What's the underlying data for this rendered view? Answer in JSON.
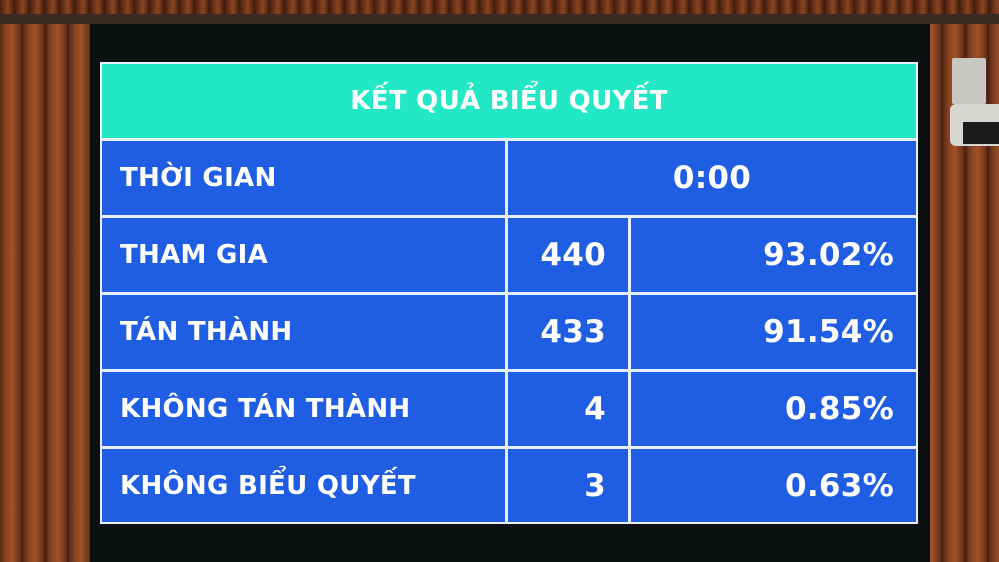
{
  "board": {
    "title": "KẾT QUẢ BIỂU QUYẾT",
    "time": {
      "label": "THỜI GIAN",
      "value": "0:00"
    },
    "rows": [
      {
        "label": "THAM GIA",
        "count": "440",
        "percent": "93.02%"
      },
      {
        "label": "TÁN THÀNH",
        "count": "433",
        "percent": "91.54%"
      },
      {
        "label": "KHÔNG TÁN THÀNH",
        "count": "4",
        "percent": "0.85%"
      },
      {
        "label": "KHÔNG BIỂU QUYẾT",
        "count": "3",
        "percent": "0.63%"
      }
    ]
  },
  "colors": {
    "header": "#22e8c6",
    "cell": "#1f5ee2",
    "text": "#ffffff",
    "grid": "#e8f0ff"
  }
}
